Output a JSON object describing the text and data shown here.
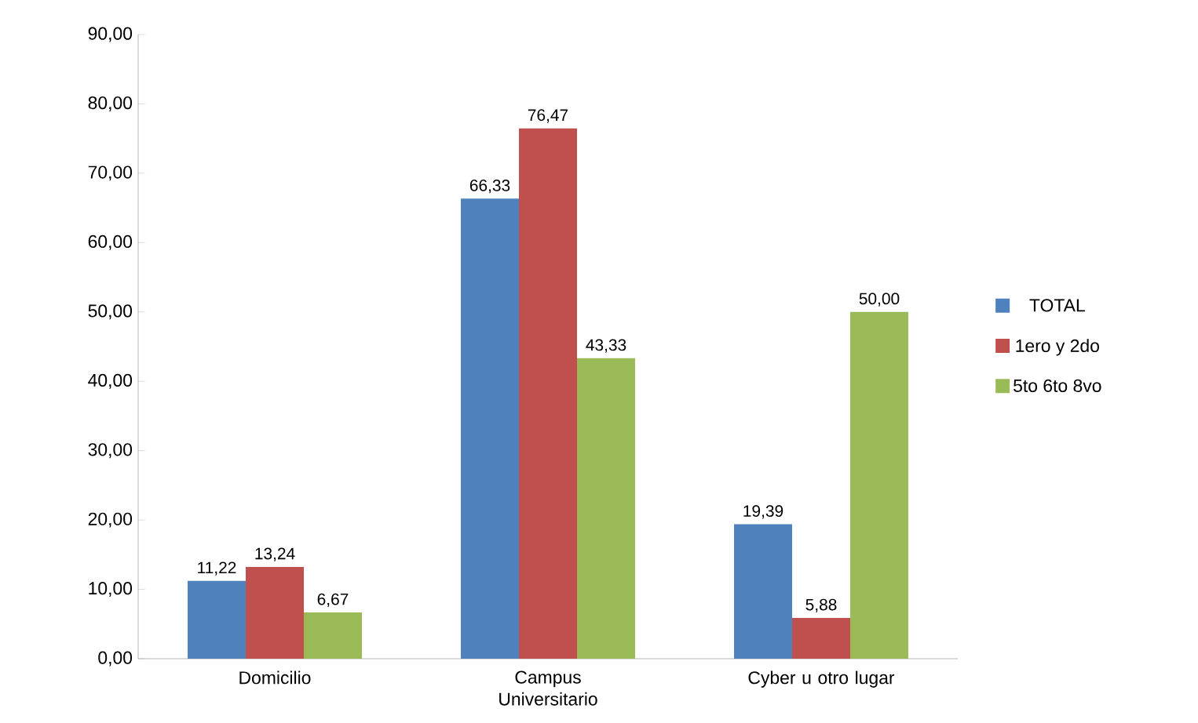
{
  "chart_data": {
    "type": "bar",
    "categories": [
      "Domicilio",
      "Campus Universitario",
      "Cyber u otro lugar"
    ],
    "series": [
      {
        "name": "TOTAL",
        "color": "#4f81bd",
        "values": [
          11.22,
          66.33,
          19.39
        ],
        "value_labels": [
          "11,22",
          "66,33",
          "19,39"
        ]
      },
      {
        "name": "1ero y 2do",
        "color": "#c0504d",
        "values": [
          13.24,
          76.47,
          5.88
        ],
        "value_labels": [
          "13,24",
          "76,47",
          "5,88"
        ]
      },
      {
        "name": "5to 6to 8vo",
        "color": "#9bbb59",
        "values": [
          6.67,
          43.33,
          50.0
        ],
        "value_labels": [
          "6,67",
          "43,33",
          "50,00"
        ]
      }
    ],
    "ylim": [
      0,
      90
    ],
    "yticks": [
      {
        "value": 0,
        "label": "0,00"
      },
      {
        "value": 10,
        "label": "10,00"
      },
      {
        "value": 20,
        "label": "20,00"
      },
      {
        "value": 30,
        "label": "30,00"
      },
      {
        "value": 40,
        "label": "40,00"
      },
      {
        "value": 50,
        "label": "50,00"
      },
      {
        "value": 60,
        "label": "60,00"
      },
      {
        "value": 70,
        "label": "70,00"
      },
      {
        "value": 80,
        "label": "80,00"
      },
      {
        "value": 90,
        "label": "90,00"
      }
    ],
    "legend": "right",
    "grid": false
  }
}
